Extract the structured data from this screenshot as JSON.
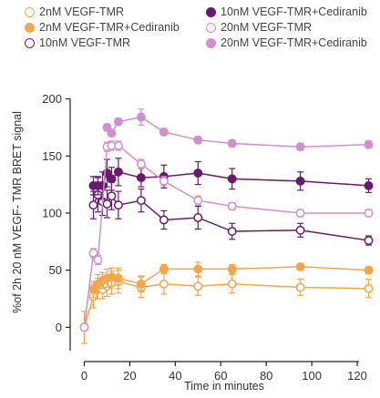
{
  "chart_data": {
    "type": "line",
    "xlabel": "Time in minutes",
    "ylabel": "%of 2h 20 nM VEGF- TMR BRET signal",
    "xlim": [
      -5,
      128
    ],
    "ylim": [
      -30,
      210
    ],
    "xticks": [
      0,
      20,
      40,
      60,
      80,
      100,
      120
    ],
    "yticks": [
      0,
      50,
      100,
      150,
      200
    ],
    "legend_position": "top",
    "series": [
      {
        "name": "2nM VEGF-TMR",
        "color": "#f5a54a",
        "filled": false,
        "x": [
          0,
          4,
          6,
          8,
          10,
          12,
          15,
          25,
          35,
          50,
          65,
          95,
          125
        ],
        "y": [
          0,
          27,
          34,
          33,
          36,
          39,
          40,
          35,
          38,
          36,
          38,
          35,
          34
        ],
        "err": [
          14,
          10,
          9,
          8,
          9,
          10,
          10,
          9,
          9,
          8,
          8,
          7,
          8
        ]
      },
      {
        "name": "2nM VEGF-TMR+Cediranib",
        "color": "#f5a54a",
        "filled": true,
        "x": [
          4,
          6,
          8,
          10,
          12,
          15,
          25,
          35,
          50,
          65,
          95,
          125
        ],
        "y": [
          33,
          38,
          41,
          43,
          44,
          43,
          38,
          51,
          51,
          51,
          53,
          50
        ],
        "err": [
          7,
          8,
          7,
          8,
          8,
          9,
          7,
          4,
          6,
          4,
          3,
          3
        ]
      },
      {
        "name": "10nM VEGF-TMR",
        "color": "#6a1a6e",
        "filled": false,
        "x": [
          4,
          6,
          8,
          10,
          12,
          15,
          25,
          35,
          50,
          65,
          95,
          125
        ],
        "y": [
          107,
          116,
          110,
          108,
          115,
          107,
          111,
          94,
          96,
          84,
          85,
          76
        ],
        "err": [
          12,
          15,
          12,
          12,
          12,
          12,
          10,
          8,
          10,
          7,
          6,
          4
        ]
      },
      {
        "name": "10nM VEGF-TMR+Cediranib",
        "color": "#6a1a6e",
        "filled": true,
        "x": [
          4,
          6,
          8,
          10,
          12,
          15,
          25,
          35,
          50,
          65,
          95,
          125
        ],
        "y": [
          124,
          124,
          124,
          135,
          130,
          136,
          131,
          132,
          135,
          130,
          128,
          124
        ],
        "err": [
          8,
          8,
          12,
          12,
          10,
          12,
          8,
          10,
          10,
          9,
          8,
          6
        ]
      },
      {
        "name": "20nM VEGF-TMR",
        "color": "#d28fd0",
        "filled": false,
        "x": [
          0,
          4,
          6,
          10,
          12,
          15,
          25,
          35,
          50,
          65,
          95,
          125
        ],
        "y": [
          0,
          65,
          59,
          158,
          159,
          159,
          143,
          128,
          111,
          106,
          100,
          100
        ],
        "err": [
          3,
          4,
          4,
          4,
          4,
          4,
          4,
          4,
          4,
          3,
          3,
          3
        ]
      },
      {
        "name": "20nM VEGF-TMR+Cediranib",
        "color": "#d28fd0",
        "filled": true,
        "x": [
          10,
          12,
          15,
          25,
          35,
          50,
          65,
          95,
          125
        ],
        "y": [
          175,
          170,
          180,
          184,
          171,
          164,
          161,
          158,
          160
        ],
        "err": [
          3,
          3,
          3,
          7,
          3,
          3,
          3,
          3,
          3
        ]
      }
    ]
  }
}
